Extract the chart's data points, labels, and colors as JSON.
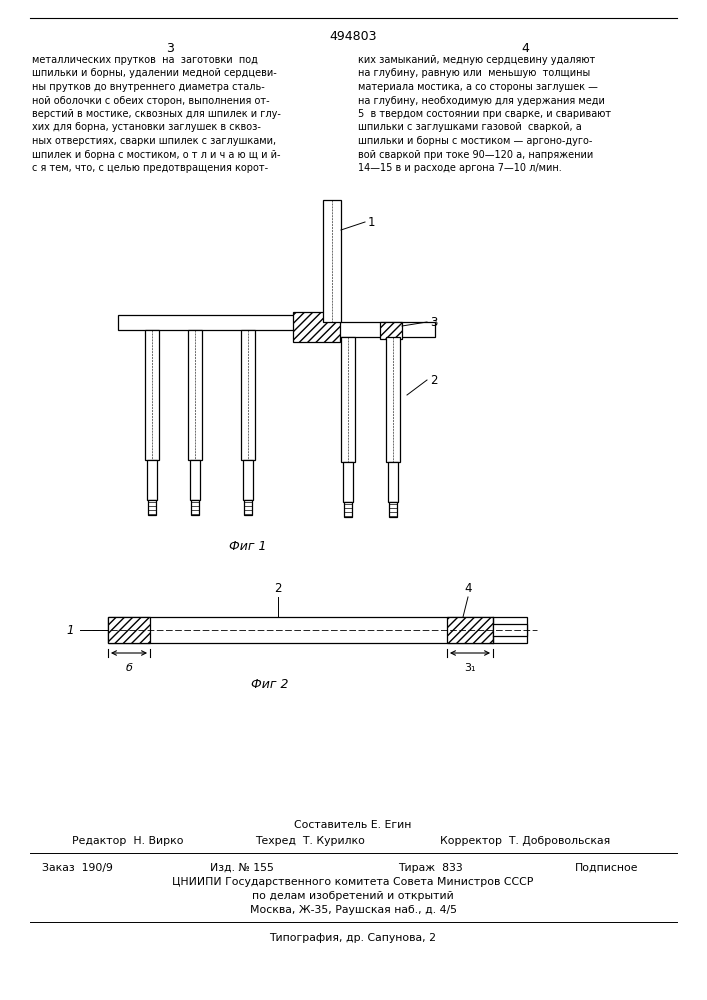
{
  "page_width": 7.07,
  "page_height": 10.0,
  "bg_color": "#ffffff",
  "patent_number": "494803",
  "page_numbers": [
    "3",
    "4"
  ],
  "top_text_left": [
    "металлических прутков  на  заготовки  под",
    "шпильки и борны, удалении медной сердцеви-",
    "ны прутков до внутреннего диаметра сталь-",
    "ной оболочки с обеих сторон, выполнения от-",
    "верстий в мостике, сквозных для шпилек и глу-",
    "хих для борна, установки заглушек в сквоз-",
    "ных отверстиях, сварки шпилек с заглушками,",
    "шпилек и борна с мостиком, о т л и ч а ю щ и й-",
    "с я тем, что, с целью предотвращения корот-"
  ],
  "top_text_right": [
    "ких замыканий, медную сердцевину удаляют",
    "на глубину, равную или  меньшую  толщины",
    "материала мостика, а со стороны заглушек —",
    "на глубину, необходимую для удержания меди",
    "5  в твердом состоянии при сварке, и сваривают",
    "шпильки с заглушками газовой  сваркой, а",
    "шпильки и борны с мостиком — аргоно-дуго-",
    "вой сваркой при токе 90—120 а, напряжении",
    "14—15 в и расходе аргона 7—10 л/мин."
  ],
  "fig1_caption": "Фиг 1",
  "fig2_caption": "Фиг 2",
  "footer_composer": "Составитель Е. Егин",
  "footer_editor": "Редактор  Н. Вирко",
  "footer_techred": "Техред  Т. Курилко",
  "footer_corrector": "Корректор  Т. Добровольская",
  "footer_order": "Заказ  190/9",
  "footer_edition": "Изд. № 155",
  "footer_circulation": "Тираж  833",
  "footer_subscription": "Подписное",
  "footer_cniip": "ЦНИИПИ Государственного комитета Совета Министров СССР",
  "footer_cniip2": "по делам изобретений и открытий",
  "footer_address": "Москва, Ж-35, Раушская наб., д. 4/5",
  "footer_typography": "Типография, др. Сапунова, 2",
  "line_color": "#000000",
  "text_color": "#000000"
}
